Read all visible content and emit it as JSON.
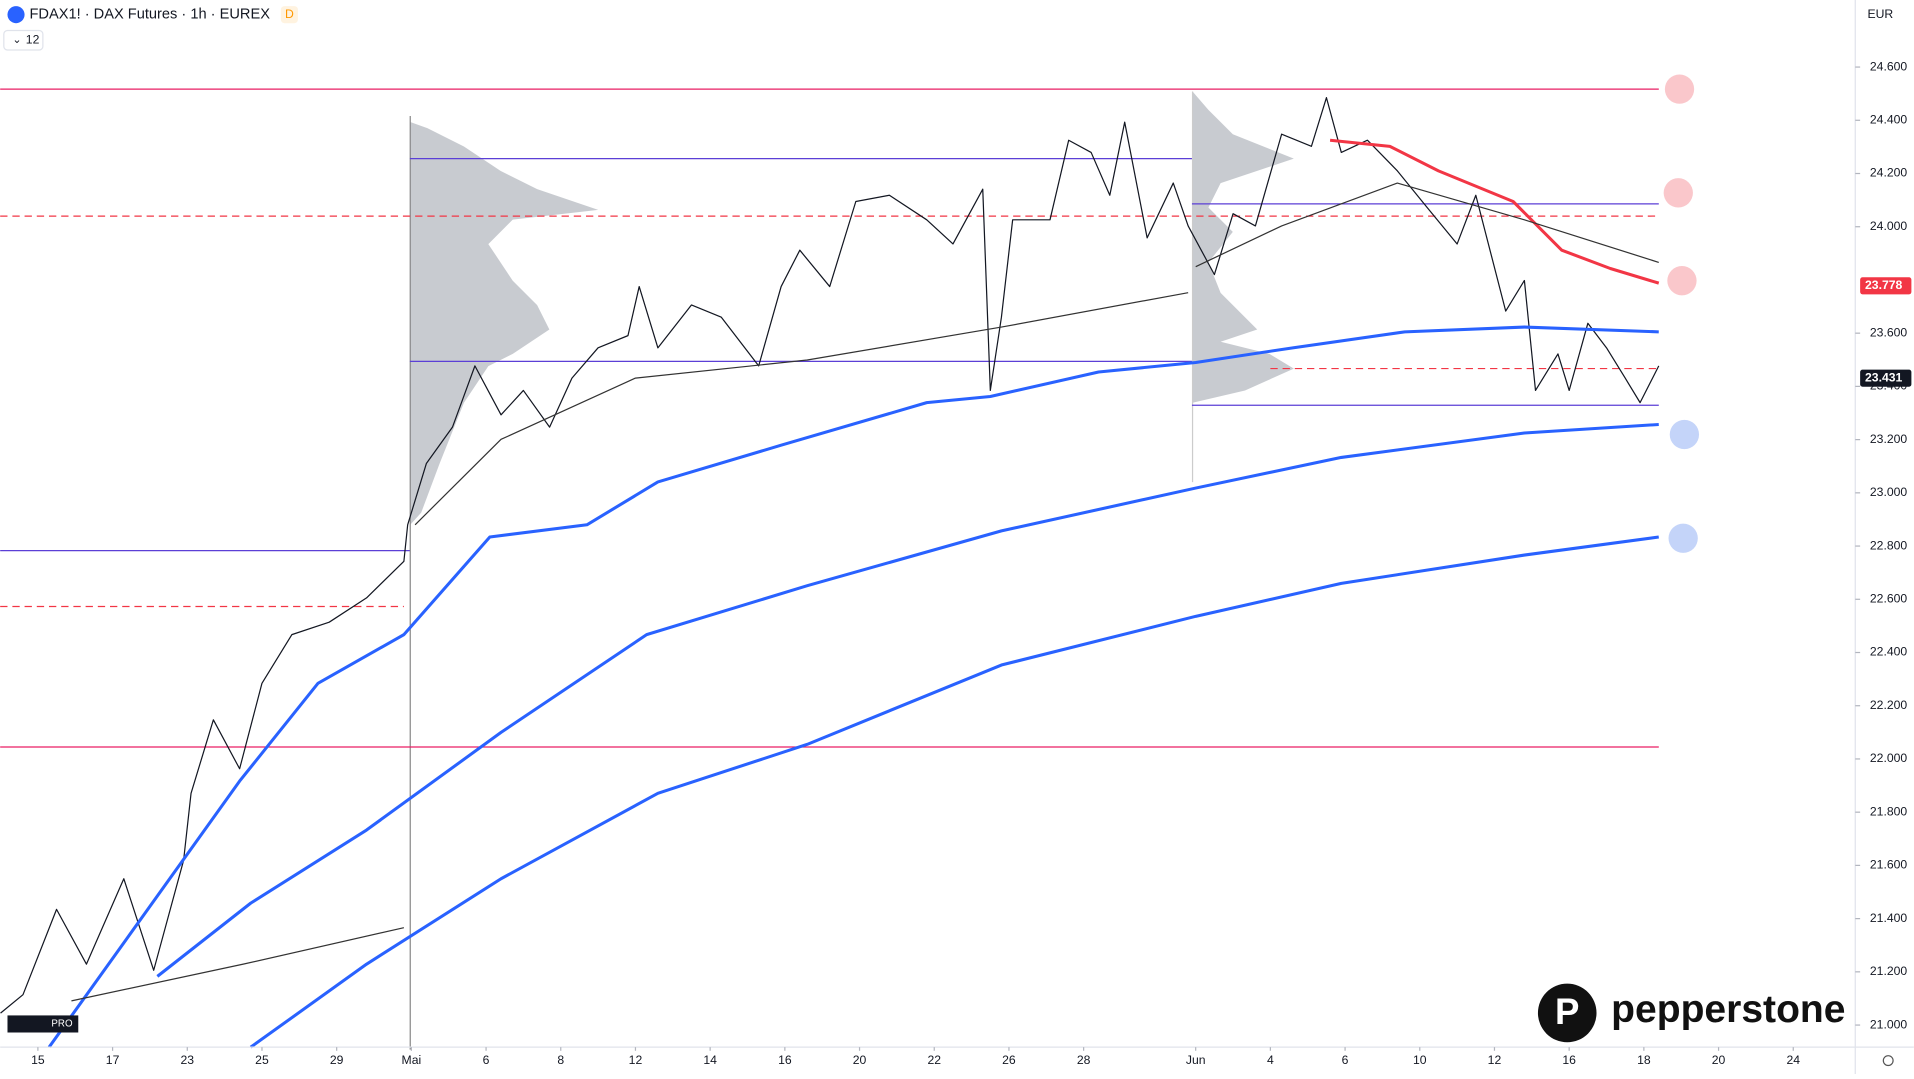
{
  "header": {
    "title": "FDAX1! · DAX Futures · 1h · EUREX",
    "badge": "D",
    "indicators": "12",
    "currency": "EUR",
    "brand": "pepperstone"
  },
  "chart_data": {
    "type": "line",
    "xlim": [
      -1.01,
      48.66
    ],
    "xticks": [
      {
        "value": 0,
        "label": "15"
      },
      {
        "value": 2,
        "label": "17"
      },
      {
        "value": 4,
        "label": "23"
      },
      {
        "value": 6,
        "label": "25"
      },
      {
        "value": 8,
        "label": "29"
      },
      {
        "value": 10,
        "label": "Mai"
      },
      {
        "value": 12,
        "label": "6"
      },
      {
        "value": 14,
        "label": "8"
      },
      {
        "value": 16,
        "label": "12"
      },
      {
        "value": 18,
        "label": "14"
      },
      {
        "value": 20,
        "label": "16"
      },
      {
        "value": 22,
        "label": "20"
      },
      {
        "value": 24,
        "label": "22"
      },
      {
        "value": 26,
        "label": "26"
      },
      {
        "value": 28,
        "label": "28"
      },
      {
        "value": 31,
        "label": "Jun"
      },
      {
        "value": 33,
        "label": "4"
      },
      {
        "value": 35,
        "label": "6"
      },
      {
        "value": 37,
        "label": "10"
      },
      {
        "value": 39,
        "label": "12"
      },
      {
        "value": 41,
        "label": "16"
      },
      {
        "value": 43,
        "label": "18"
      },
      {
        "value": 45,
        "label": "20"
      },
      {
        "value": 47,
        "label": "24"
      }
    ],
    "ylim": [
      20917,
      24852
    ],
    "yticks": [
      {
        "value": 21000,
        "label": "21.000"
      },
      {
        "value": 21200,
        "label": "21.200"
      },
      {
        "value": 21400,
        "label": "21.400"
      },
      {
        "value": 21600,
        "label": "21.600"
      },
      {
        "value": 21800,
        "label": "21.800"
      },
      {
        "value": 22000,
        "label": "22.000"
      },
      {
        "value": 22200,
        "label": "22.200"
      },
      {
        "value": 22400,
        "label": "22.400"
      },
      {
        "value": 22600,
        "label": "22.600"
      },
      {
        "value": 22800,
        "label": "22.800"
      },
      {
        "value": 23000,
        "label": "23.000"
      },
      {
        "value": 23200,
        "label": "23.200"
      },
      {
        "value": 23400,
        "label": "23.400"
      },
      {
        "value": 23600,
        "label": "23.600"
      },
      {
        "value": 24000,
        "label": "24.000"
      },
      {
        "value": 24200,
        "label": "24.200"
      },
      {
        "value": 24400,
        "label": "24.400"
      },
      {
        "value": 24600,
        "label": "24.600"
      }
    ],
    "series": [
      {
        "color": "#131722",
        "width": 1,
        "x": [
          -1.0,
          -0.4,
          0.5,
          1.3,
          2.3,
          3.1,
          3.9,
          4.1,
          4.7,
          5.4,
          6.0,
          6.8,
          7.8,
          8.8,
          9.8,
          9.9,
          10.4,
          11.1,
          11.7,
          12.4,
          13.0,
          13.7,
          14.3,
          15.0,
          15.8,
          16.1,
          16.6,
          17.5,
          18.3,
          19.3,
          19.9,
          20.4,
          21.2,
          21.9,
          22.8,
          23.8,
          24.5,
          25.3,
          25.5,
          25.8,
          26.1,
          27.1,
          27.6,
          28.2,
          28.7,
          29.1,
          29.7,
          30.4,
          30.8,
          31.5,
          32.0,
          32.6,
          33.3,
          34.1,
          34.5,
          34.9,
          35.6,
          36.4,
          37.2,
          38.0,
          38.5,
          39.3,
          39.8,
          40.1,
          40.7,
          41.0,
          41.5,
          42.0,
          42.5,
          42.9,
          43.4
        ],
        "values": [
          21045,
          21114,
          21435,
          21229,
          21550,
          21206,
          21619,
          21871,
          22147,
          21963,
          22284,
          22467,
          22514,
          22605,
          22743,
          22880,
          23110,
          23247,
          23477,
          23293,
          23385,
          23247,
          23431,
          23545,
          23591,
          23775,
          23545,
          23706,
          23660,
          23477,
          23775,
          23912,
          23775,
          24095,
          24118,
          24026,
          23935,
          24141,
          23385,
          23660,
          24026,
          24026,
          24325,
          24279,
          24118,
          24393,
          23958,
          24164,
          24003,
          23820,
          24049,
          24003,
          24348,
          24302,
          24485,
          24279,
          24325,
          24210,
          24072,
          23935,
          24118,
          23683,
          23798,
          23385,
          23522,
          23385,
          23637,
          23545,
          23431,
          23339,
          23477
        ]
      },
      {
        "color": "#2962ff",
        "width": 2.5,
        "x": [
          0.3,
          5.4,
          7.5,
          9.8,
          12.1,
          14.7,
          16.6,
          19.9,
          23.8,
          25.5,
          28.4,
          31.0,
          33.6,
          36.6,
          39.8,
          43.4
        ],
        "values": [
          20917,
          21917,
          22284,
          22467,
          22834,
          22880,
          23041,
          23179,
          23339,
          23362,
          23454,
          23490,
          23545,
          23605,
          23623,
          23605
        ]
      },
      {
        "color": "#2962ff",
        "width": 2.5,
        "x": [
          3.2,
          5.7,
          8.8,
          12.4,
          16.3,
          20.6,
          25.8,
          31.0,
          34.9,
          39.8,
          43.4
        ],
        "values": [
          21183,
          21458,
          21733,
          22100,
          22467,
          22651,
          22857,
          23018,
          23133,
          23225,
          23257
        ]
      },
      {
        "color": "#2962ff",
        "width": 2.5,
        "x": [
          5.7,
          8.8,
          12.4,
          16.6,
          20.6,
          25.8,
          31.0,
          34.9,
          39.8,
          43.4
        ],
        "values": [
          20917,
          21229,
          21550,
          21871,
          22055,
          22353,
          22536,
          22660,
          22766,
          22834
        ]
      },
      {
        "color": "#f23645",
        "width": 2.5,
        "x": [
          34.6,
          36.2,
          37.5,
          39.5,
          40.8,
          42.1,
          43.4
        ],
        "values": [
          24325,
          24302,
          24210,
          24095,
          23912,
          23843,
          23788
        ]
      },
      {
        "color": "#333333",
        "width": 1,
        "x": [
          0.9,
          5.5,
          9.8,
          null,
          10.1,
          12.4,
          16.0,
          20.6,
          25.8,
          30.8,
          null,
          31.0,
          33.3,
          36.4,
          39.8,
          43.4
        ],
        "values": [
          21091,
          21229,
          21366,
          null,
          22880,
          23201,
          23431,
          23499,
          23623,
          23752,
          null,
          23850,
          24003,
          24164,
          24026,
          23866
        ]
      }
    ],
    "levels": [
      {
        "value": 24517,
        "x": [
          -1.01,
          43.4
        ],
        "color": "#e91e63",
        "style": "solid"
      },
      {
        "value": 22045,
        "x": [
          -1.01,
          43.4
        ],
        "color": "#e91e63",
        "style": "solid"
      },
      {
        "value": 24256,
        "x": [
          9.96,
          30.9
        ],
        "color": "#5b3fd6",
        "style": "solid"
      },
      {
        "value": 23494,
        "x": [
          9.96,
          30.9
        ],
        "color": "#5b3fd6",
        "style": "solid"
      },
      {
        "value": 22783,
        "x": [
          -1.01,
          9.96
        ],
        "color": "#5b3fd6",
        "style": "solid"
      },
      {
        "value": 24086,
        "x": [
          30.9,
          43.4
        ],
        "color": "#5b3fd6",
        "style": "solid"
      },
      {
        "value": 23329,
        "x": [
          30.9,
          43.4
        ],
        "color": "#5b3fd6",
        "style": "solid"
      },
      {
        "value": 24040,
        "x": [
          -1.01,
          43.4
        ],
        "color": "#f23645",
        "style": "dashed"
      },
      {
        "value": 22573,
        "x": [
          -1.01,
          9.8
        ],
        "color": "#f23645",
        "style": "dashed"
      },
      {
        "value": 23467,
        "x": [
          33.0,
          43.4
        ],
        "color": "#f23645",
        "style": "dashed"
      }
    ],
    "price_labels": [
      {
        "value": 23778,
        "label": "23.778",
        "color": "#f23645"
      },
      {
        "value": 23431,
        "label": "23.431",
        "color": "#131722"
      }
    ]
  }
}
